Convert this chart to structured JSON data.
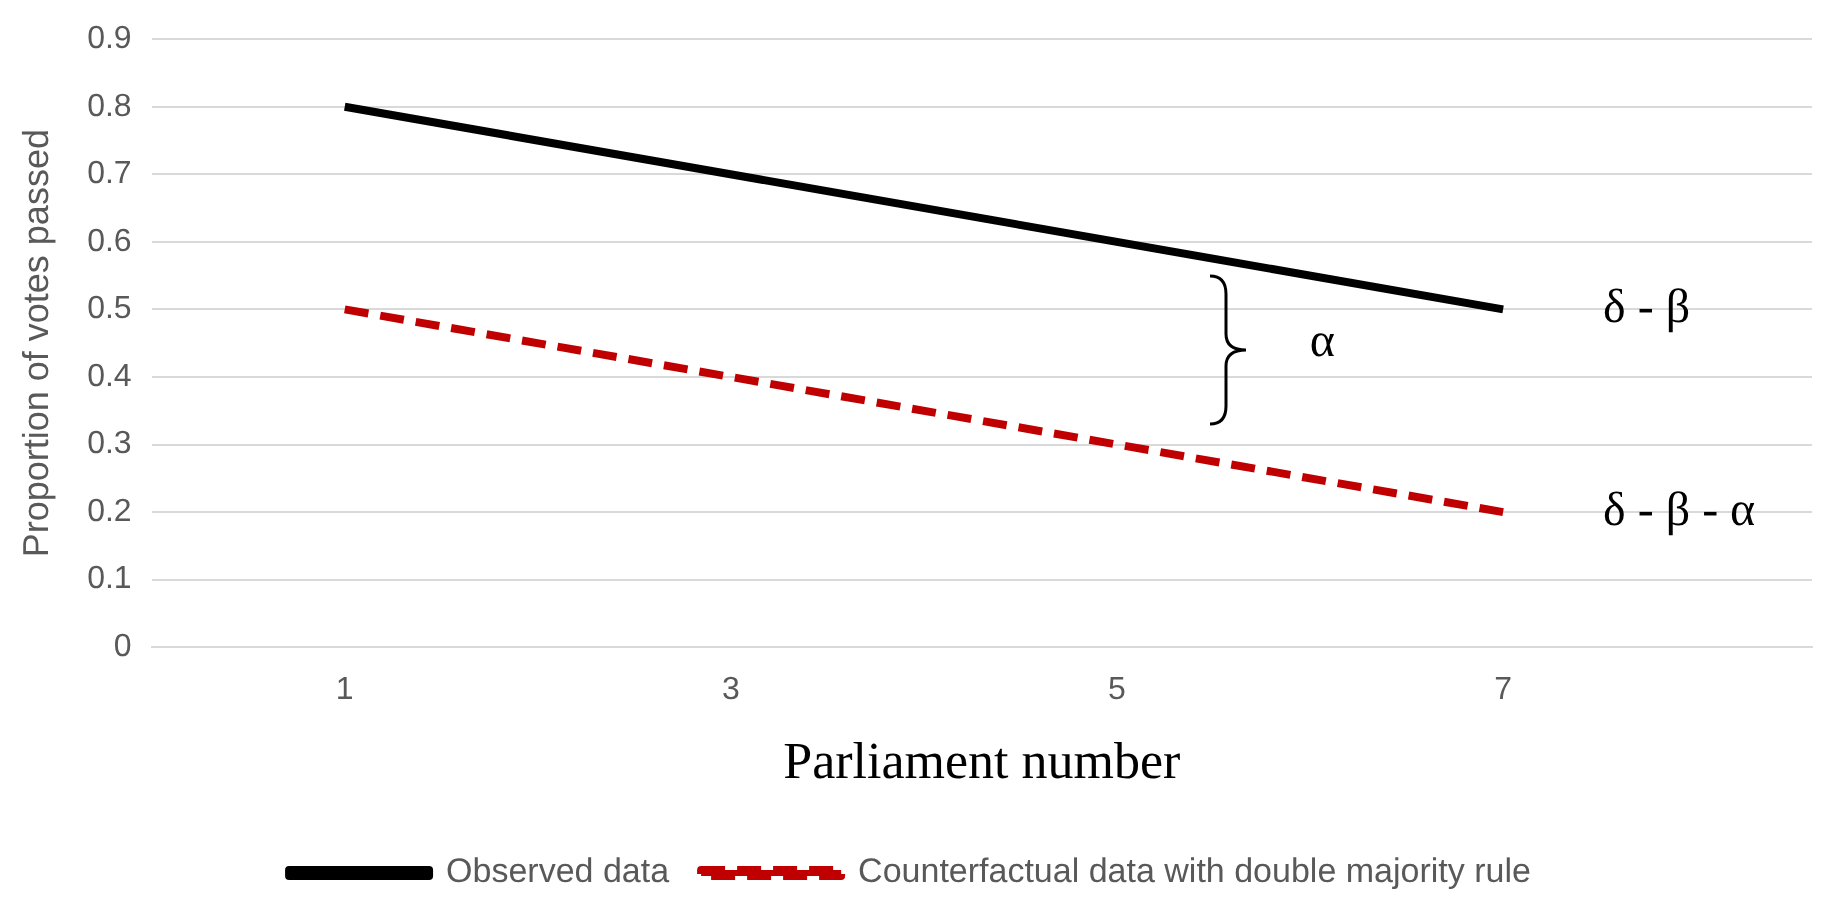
{
  "chart_data": {
    "type": "line",
    "xlabel": "Parliament number",
    "ylabel": "Proportion of votes passed",
    "xlim": [
      0,
      8.6
    ],
    "xticks": [
      1,
      3,
      5,
      7
    ],
    "ylim": [
      0,
      0.9
    ],
    "yticks": [
      0,
      0.1,
      0.2,
      0.3,
      0.4,
      0.5,
      0.6,
      0.7,
      0.8,
      0.9
    ],
    "x": [
      1,
      7
    ],
    "grid": "y",
    "legend": "bottom",
    "marker": "none",
    "series": [
      {
        "name": "Observed data",
        "color": "#000000",
        "values": [
          0.8,
          0.5
        ],
        "line_style": "solid"
      },
      {
        "name": "Counterfactual data with double majority rule",
        "color": "#c00000",
        "values": [
          0.5,
          0.2
        ],
        "line_style": "dashed"
      }
    ],
    "annotations": [
      "α",
      {
        "text": "δ - β",
        "x": 7,
        "y": 0.5
      },
      {
        "text": "δ - β - α",
        "x": 7,
        "y": 0.2
      }
    ]
  }
}
